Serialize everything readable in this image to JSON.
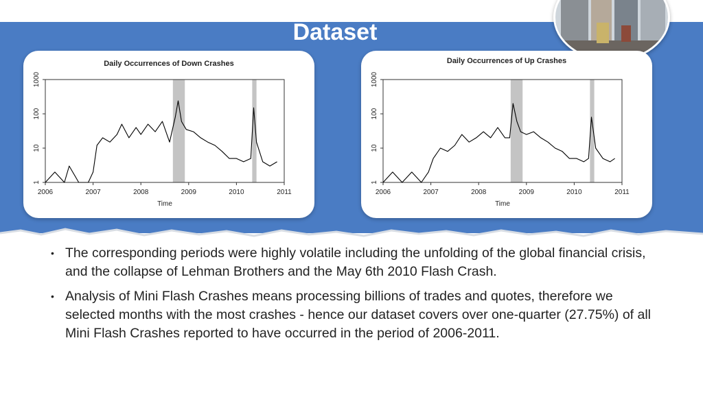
{
  "slide": {
    "title": "Dataset",
    "bullets": [
      "The corresponding periods were highly volatile including the unfolding of the global financial crisis, and the collapse of Lehman Brothers and the May 6th 2010 Flash Crash.",
      "Analysis of Mini Flash Crashes means processing billions of trades and quotes, therefore we selected months with the most crashes - hence our dataset covers over one-quarter (27.75%) of all Mini Flash Crashes reported to have occurred in the period of 2006-2011."
    ]
  },
  "colors": {
    "banner": "#4a7cc4",
    "series": "#000000",
    "shade": "#c4c4c4"
  },
  "chart_data": [
    {
      "type": "line",
      "title": "Daily Occurrences of Down Crashes",
      "xlabel": "Time",
      "ylabel": "",
      "x_ticks": [
        "2006",
        "2007",
        "2008",
        "2009",
        "2010",
        "2011"
      ],
      "y_ticks": [
        "1",
        "10",
        "100",
        "1000"
      ],
      "y_scale": "log",
      "xlim": [
        2006,
        2011
      ],
      "ylim": [
        1,
        1000
      ],
      "shaded_periods": [
        [
          2008.67,
          2008.92
        ],
        [
          2010.33,
          2010.42
        ]
      ],
      "series": [
        {
          "points": [
            [
              2006.0,
              1
            ],
            [
              2006.2,
              2
            ],
            [
              2006.4,
              1
            ],
            [
              2006.5,
              3
            ],
            [
              2006.7,
              1
            ],
            [
              2006.9,
              1
            ],
            [
              2007.0,
              2
            ],
            [
              2007.08,
              12
            ],
            [
              2007.2,
              20
            ],
            [
              2007.35,
              15
            ],
            [
              2007.5,
              25
            ],
            [
              2007.6,
              50
            ],
            [
              2007.75,
              20
            ],
            [
              2007.9,
              40
            ],
            [
              2008.0,
              25
            ],
            [
              2008.15,
              50
            ],
            [
              2008.3,
              30
            ],
            [
              2008.45,
              60
            ],
            [
              2008.6,
              15
            ],
            [
              2008.72,
              80
            ],
            [
              2008.78,
              240
            ],
            [
              2008.85,
              60
            ],
            [
              2008.95,
              35
            ],
            [
              2009.1,
              30
            ],
            [
              2009.25,
              20
            ],
            [
              2009.4,
              15
            ],
            [
              2009.55,
              12
            ],
            [
              2009.7,
              8
            ],
            [
              2009.85,
              5
            ],
            [
              2010.0,
              5
            ],
            [
              2010.15,
              4
            ],
            [
              2010.3,
              5
            ],
            [
              2010.36,
              150
            ],
            [
              2010.42,
              15
            ],
            [
              2010.55,
              4
            ],
            [
              2010.7,
              3
            ],
            [
              2010.85,
              4
            ]
          ]
        }
      ]
    },
    {
      "type": "line",
      "title": "Daily Occurrences of Up Crashes",
      "xlabel": "Time",
      "ylabel": "",
      "x_ticks": [
        "2006",
        "2007",
        "2008",
        "2009",
        "2010",
        "2011"
      ],
      "y_ticks": [
        "1",
        "10",
        "100",
        "1000"
      ],
      "y_scale": "log",
      "xlim": [
        2006,
        2011
      ],
      "ylim": [
        1,
        1000
      ],
      "shaded_periods": [
        [
          2008.67,
          2008.92
        ],
        [
          2010.33,
          2010.42
        ]
      ],
      "series": [
        {
          "points": [
            [
              2006.0,
              1
            ],
            [
              2006.2,
              2
            ],
            [
              2006.4,
              1
            ],
            [
              2006.6,
              2
            ],
            [
              2006.8,
              1
            ],
            [
              2006.95,
              2
            ],
            [
              2007.05,
              5
            ],
            [
              2007.2,
              10
            ],
            [
              2007.35,
              8
            ],
            [
              2007.5,
              12
            ],
            [
              2007.65,
              25
            ],
            [
              2007.8,
              15
            ],
            [
              2007.95,
              20
            ],
            [
              2008.1,
              30
            ],
            [
              2008.25,
              20
            ],
            [
              2008.4,
              40
            ],
            [
              2008.55,
              20
            ],
            [
              2008.65,
              20
            ],
            [
              2008.72,
              200
            ],
            [
              2008.8,
              60
            ],
            [
              2008.88,
              30
            ],
            [
              2009.0,
              25
            ],
            [
              2009.15,
              30
            ],
            [
              2009.3,
              20
            ],
            [
              2009.45,
              15
            ],
            [
              2009.6,
              10
            ],
            [
              2009.75,
              8
            ],
            [
              2009.9,
              5
            ],
            [
              2010.05,
              5
            ],
            [
              2010.2,
              4
            ],
            [
              2010.3,
              5
            ],
            [
              2010.36,
              80
            ],
            [
              2010.45,
              10
            ],
            [
              2010.6,
              5
            ],
            [
              2010.75,
              4
            ],
            [
              2010.85,
              5
            ]
          ]
        }
      ]
    }
  ]
}
